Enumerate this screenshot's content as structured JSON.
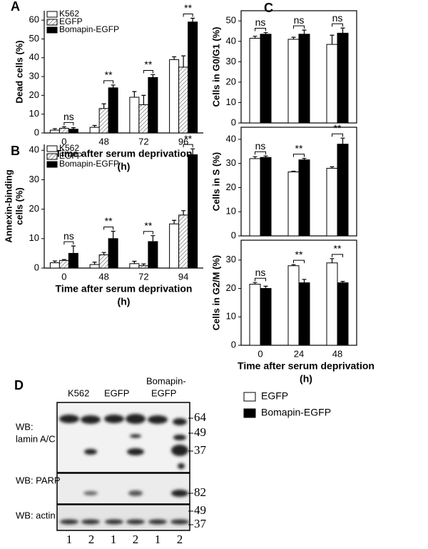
{
  "chart_data": [
    {
      "type": "bar",
      "label": "A",
      "ylabel": [
        "Dead cells (%)"
      ],
      "xlabel": [
        "Time after serum deprivation",
        "(h)"
      ],
      "categories": [
        "0",
        "48",
        "72",
        "96"
      ],
      "ylim": [
        0,
        65
      ],
      "yticks": [
        0,
        10,
        20,
        30,
        40,
        50,
        60
      ],
      "legend": "upper left",
      "series": [
        {
          "name": "K562",
          "color": "#ffffff",
          "values": [
            1.5,
            3,
            19,
            39
          ],
          "errors": [
            0.8,
            1,
            3,
            1.5
          ]
        },
        {
          "name": "EGFP",
          "color": "#ffffff",
          "hatch": true,
          "values": [
            2.5,
            13,
            15,
            35
          ],
          "errors": [
            0.8,
            2.5,
            5,
            6
          ]
        },
        {
          "name": "Bomapin-EGFP",
          "color": "#000000",
          "values": [
            2,
            24,
            29.5,
            59
          ],
          "errors": [
            0.8,
            1.5,
            1.5,
            2
          ]
        }
      ],
      "significance": [
        "ns",
        "**",
        "**",
        "**"
      ]
    },
    {
      "type": "bar",
      "label": "B",
      "ylabel": [
        "Annexin-binding",
        "cells (%)"
      ],
      "xlabel": [
        "Time after serum deprivation",
        "(h)"
      ],
      "categories": [
        "0",
        "48",
        "72",
        "94"
      ],
      "ylim": [
        0,
        42
      ],
      "yticks": [
        0,
        10,
        20,
        30,
        40
      ],
      "legend": "upper left",
      "series": [
        {
          "name": "K562",
          "color": "#ffffff",
          "values": [
            1.8,
            1.2,
            1.5,
            15
          ],
          "errors": [
            0.6,
            0.8,
            0.8,
            1.2
          ]
        },
        {
          "name": "EGFP",
          "color": "#ffffff",
          "hatch": true,
          "values": [
            2.6,
            4.5,
            0.8,
            18
          ],
          "errors": [
            0.3,
            0.8,
            0.6,
            1.5
          ]
        },
        {
          "name": "Bomapin-EGFP",
          "color": "#000000",
          "values": [
            5,
            10,
            9,
            38.5
          ],
          "errors": [
            2.5,
            2.5,
            2,
            2
          ]
        }
      ],
      "significance": [
        "ns",
        "**",
        "**",
        "**"
      ]
    },
    {
      "type": "bar-panels",
      "label": "C",
      "xlabel": [
        "Time after serum deprivation",
        "(h)"
      ],
      "categories": [
        "0",
        "24",
        "48"
      ],
      "legend": "below",
      "series": [
        {
          "name": "EGFP",
          "color": "#ffffff"
        },
        {
          "name": "Bomapin-EGFP",
          "color": "#000000"
        }
      ],
      "panels": [
        {
          "ylabel": [
            "Cells in G0/G1 (%)"
          ],
          "ylim": [
            0,
            55
          ],
          "yticks": [
            0,
            10,
            20,
            30,
            40,
            50
          ],
          "values": [
            [
              41.5,
              41,
              38.5
            ],
            [
              43.5,
              43.5,
              44
            ]
          ],
          "errors": [
            [
              1,
              1,
              4.5
            ],
            [
              0.8,
              2,
              2.5
            ]
          ],
          "significance": [
            "ns",
            "ns",
            "ns"
          ]
        },
        {
          "ylabel": [
            "Cells in S (%)"
          ],
          "ylim": [
            0,
            45
          ],
          "yticks": [
            0,
            10,
            20,
            30,
            40
          ],
          "values": [
            [
              32,
              26.5,
              28
            ],
            [
              32.5,
              31.5,
              38
            ]
          ],
          "errors": [
            [
              0.8,
              0.3,
              0.6
            ],
            [
              0.6,
              0.6,
              2.5
            ]
          ],
          "significance": [
            "ns",
            "**",
            "**"
          ]
        },
        {
          "ylabel": [
            "Cells in G2/M (%)"
          ],
          "ylim": [
            0,
            37
          ],
          "yticks": [
            0,
            10,
            20,
            30
          ],
          "values": [
            [
              21.5,
              28,
              29
            ],
            [
              20,
              22,
              22
            ]
          ],
          "errors": [
            [
              0.6,
              0.4,
              1.5
            ],
            [
              0.8,
              1.2,
              0.5
            ]
          ],
          "significance": [
            "ns",
            "**",
            "**"
          ]
        }
      ]
    }
  ],
  "blot": {
    "label": "D",
    "lanes": [
      "K562",
      "EGFP",
      "Bomapin-",
      "EGFP"
    ],
    "rows": [
      {
        "name": [
          "WB:",
          "lamin A/C"
        ],
        "markers": [
          "64",
          "49",
          "37"
        ]
      },
      {
        "name": [
          "WB: PARP"
        ],
        "markers": [
          "82"
        ]
      },
      {
        "name": [
          "WB: actin"
        ],
        "markers": [
          "49",
          "37"
        ]
      }
    ],
    "lane_numbers": [
      "1",
      "2",
      "1",
      "2",
      "1",
      "2"
    ]
  }
}
